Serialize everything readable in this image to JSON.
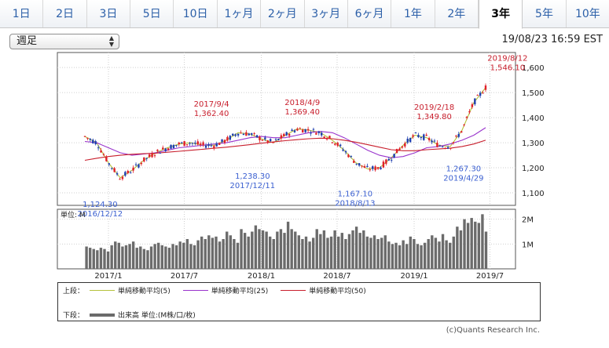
{
  "tabs": [
    {
      "label": "1日"
    },
    {
      "label": "2日"
    },
    {
      "label": "3日"
    },
    {
      "label": "5日"
    },
    {
      "label": "10日"
    },
    {
      "label": "1ヶ月"
    },
    {
      "label": "2ヶ月"
    },
    {
      "label": "3ヶ月"
    },
    {
      "label": "6ヶ月"
    },
    {
      "label": "1年"
    },
    {
      "label": "2年"
    },
    {
      "label": "3年"
    },
    {
      "label": "5年"
    },
    {
      "label": "10年"
    }
  ],
  "active_tab": "3年",
  "period_select": {
    "value": "週足"
  },
  "timestamp": "19/08/23 16:59 EST",
  "colors": {
    "up": "#e0202a",
    "down": "#1f3fb0",
    "ma5": "#b5c23c",
    "ma25": "#9933cc",
    "ma50": "#c81e2c",
    "volume": "#6b6b6b",
    "high_label": "#c81e2c",
    "low_label": "#3a5fd0"
  },
  "chart_data": [
    {
      "type": "line",
      "title": "",
      "y_ticks": [
        "1,600",
        "1,500",
        "1,400",
        "1,300",
        "1,200",
        "1,100"
      ],
      "ylim": [
        1050,
        1660
      ],
      "x_ticks": [
        "2017/1",
        "2017/7",
        "2018/1",
        "2018/7",
        "2019/1",
        "2019/7"
      ],
      "series": [
        {
          "name": "単純移動平均(5)",
          "values": [
            1325,
            1300,
            1220,
            1160,
            1190,
            1230,
            1260,
            1280,
            1295,
            1300,
            1290,
            1290,
            1310,
            1340,
            1335,
            1315,
            1300,
            1330,
            1355,
            1350,
            1340,
            1310,
            1270,
            1220,
            1195,
            1200,
            1240,
            1290,
            1330,
            1320,
            1290,
            1285,
            1350,
            1460,
            1520
          ]
        },
        {
          "name": "単純移動平均(25)",
          "values": [
            1305,
            1300,
            1280,
            1260,
            1250,
            1255,
            1260,
            1270,
            1280,
            1285,
            1290,
            1295,
            1300,
            1310,
            1320,
            1325,
            1320,
            1320,
            1330,
            1340,
            1345,
            1340,
            1320,
            1295,
            1270,
            1250,
            1240,
            1245,
            1260,
            1280,
            1285,
            1295,
            1310,
            1330,
            1360
          ]
        },
        {
          "name": "単純移動平均(50)",
          "values": [
            1230,
            1238,
            1245,
            1250,
            1254,
            1256,
            1258,
            1262,
            1266,
            1270,
            1274,
            1278,
            1282,
            1287,
            1292,
            1298,
            1303,
            1308,
            1312,
            1316,
            1318,
            1316,
            1310,
            1302,
            1292,
            1282,
            1272,
            1268,
            1268,
            1272,
            1275,
            1278,
            1285,
            1295,
            1310
          ]
        }
      ],
      "annotations": [
        {
          "date": "2016/12/12",
          "value": "1,124.30",
          "kind": "low"
        },
        {
          "date": "2017/9/4",
          "value": "1,362.40",
          "kind": "high"
        },
        {
          "date": "2017/12/11",
          "value": "1,238.30",
          "kind": "low"
        },
        {
          "date": "2018/4/9",
          "value": "1,369.40",
          "kind": "high"
        },
        {
          "date": "2018/8/13",
          "value": "1,167.10",
          "kind": "low"
        },
        {
          "date": "2019/2/18",
          "value": "1,349.80",
          "kind": "high"
        },
        {
          "date": "2019/4/29",
          "value": "1,267.30",
          "kind": "low"
        },
        {
          "date": "2019/8/12",
          "value": "1,546.10",
          "kind": "high"
        }
      ]
    },
    {
      "type": "bar",
      "title": "",
      "unit_label": "単位: M",
      "y_ticks": [
        "2M",
        "1M"
      ],
      "ylim": [
        0,
        2.4
      ],
      "values": [
        0.9,
        0.85,
        0.8,
        0.75,
        0.85,
        0.8,
        0.7,
        0.95,
        1.1,
        1.05,
        0.9,
        0.95,
        1.0,
        1.1,
        0.85,
        0.9,
        0.8,
        0.75,
        0.9,
        1.0,
        1.05,
        0.95,
        0.9,
        0.85,
        1.0,
        0.95,
        1.1,
        1.05,
        1.2,
        1.0,
        0.95,
        1.15,
        1.3,
        1.2,
        1.35,
        1.25,
        1.3,
        1.1,
        1.2,
        1.5,
        1.35,
        1.2,
        1.05,
        1.6,
        1.45,
        1.3,
        1.5,
        1.75,
        1.6,
        1.55,
        1.5,
        1.3,
        1.2,
        1.5,
        1.6,
        1.45,
        1.9,
        1.6,
        1.5,
        1.35,
        1.2,
        1.3,
        1.1,
        1.25,
        1.6,
        1.4,
        1.55,
        1.25,
        1.3,
        1.55,
        1.3,
        1.45,
        1.2,
        1.4,
        1.55,
        1.7,
        1.45,
        1.55,
        1.3,
        1.25,
        1.35,
        1.2,
        1.25,
        1.35,
        1.1,
        1.0,
        1.05,
        0.95,
        1.15,
        1.0,
        1.3,
        1.2,
        1.0,
        0.95,
        1.05,
        1.2,
        1.35,
        1.25,
        1.1,
        1.4,
        1.15,
        1.05,
        1.3,
        1.7,
        1.55,
        2.0,
        1.85,
        2.05,
        1.9,
        1.85,
        2.2,
        1.5
      ]
    }
  ],
  "legend": {
    "upper_label": "上段：",
    "lower_label": "下段：",
    "items": [
      {
        "label": "単純移動平均(5)"
      },
      {
        "label": "単純移動平均(25)"
      },
      {
        "label": "単純移動平均(50)"
      }
    ],
    "volume_label": "出来高 単位:(M株/口/枚)"
  },
  "credit": "(c)Quants Research Inc."
}
